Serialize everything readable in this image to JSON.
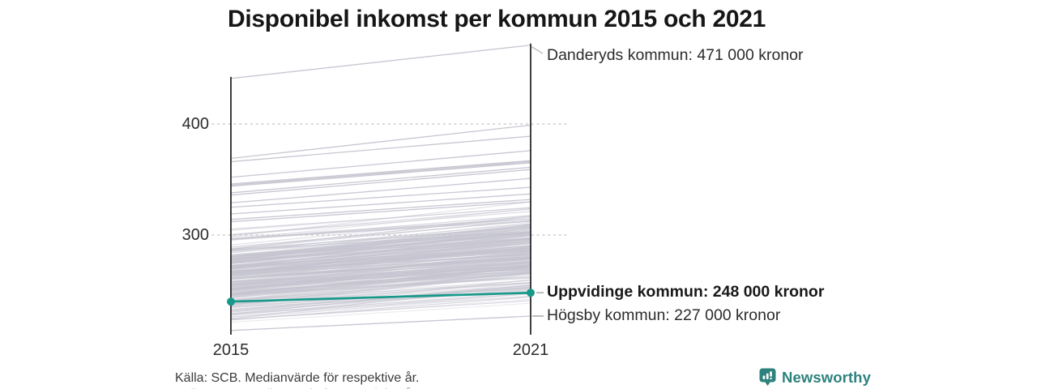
{
  "title": "Disponibel inkomst per kommun 2015 och 2021",
  "footer": {
    "source": "Källa: SCB. Medianvärde för respektive år."
  },
  "brand": {
    "name": "Newsworthy",
    "color": "#2e827d"
  },
  "colors": {
    "highlight": "#17998a",
    "line_gray": "#c5c4d0",
    "axis": "#1c1c1c",
    "grid": "#cbcbcb",
    "leader": "#9a9a9a"
  },
  "chart_data": {
    "type": "line",
    "subtype": "slopegraph",
    "title": "Disponibel inkomst per kommun 2015 och 2021",
    "x": [
      2015,
      2021
    ],
    "x_labels": [
      "2015",
      "2021"
    ],
    "y_ticks": [
      400,
      300
    ],
    "y_tick_labels": [
      "400",
      "300"
    ],
    "value_unit": "000 kronor",
    "axis_range_shown": [
      214,
      471
    ],
    "grid": "dotted horizontal lines at y ticks",
    "legend": "none",
    "annotations": [
      {
        "id": "danderyd",
        "label": "Danderyds kommun: 471 000 kronor",
        "values": [
          441,
          471
        ],
        "labeled_value": 471,
        "highlighted": false,
        "leader": "diagonal"
      },
      {
        "id": "uppvidinge",
        "label": "Uppvidinge kommun: 248 000 kronor",
        "values": [
          240,
          248
        ],
        "labeled_value": 248,
        "highlighted": true,
        "leader": "horizontal"
      },
      {
        "id": "hogsby",
        "label": "Högsby kommun: 227 000 kronor",
        "values": [
          214,
          227
        ],
        "labeled_value": 227,
        "highlighted": false,
        "leader": "horizontal"
      }
    ],
    "background_series": {
      "description": "Unlabeled gray slope lines, one per Swedish municipality (values in thousands of kronor, estimated from pixels)",
      "upper_lines": [
        [
          369,
          399
        ],
        [
          366,
          389
        ],
        [
          352,
          376
        ],
        [
          346,
          367
        ],
        [
          345,
          366
        ],
        [
          344,
          365
        ],
        [
          338,
          361
        ],
        [
          336,
          359
        ],
        [
          329,
          351
        ],
        [
          325,
          343
        ],
        [
          319,
          337
        ],
        [
          314,
          332
        ],
        [
          312,
          330
        ]
      ],
      "band": {
        "count": 262,
        "seed": 11,
        "start_min": 218,
        "start_max": 308,
        "gain_min": 14,
        "gain_max": 31,
        "min_end": 228,
        "max_end": 340
      }
    }
  }
}
